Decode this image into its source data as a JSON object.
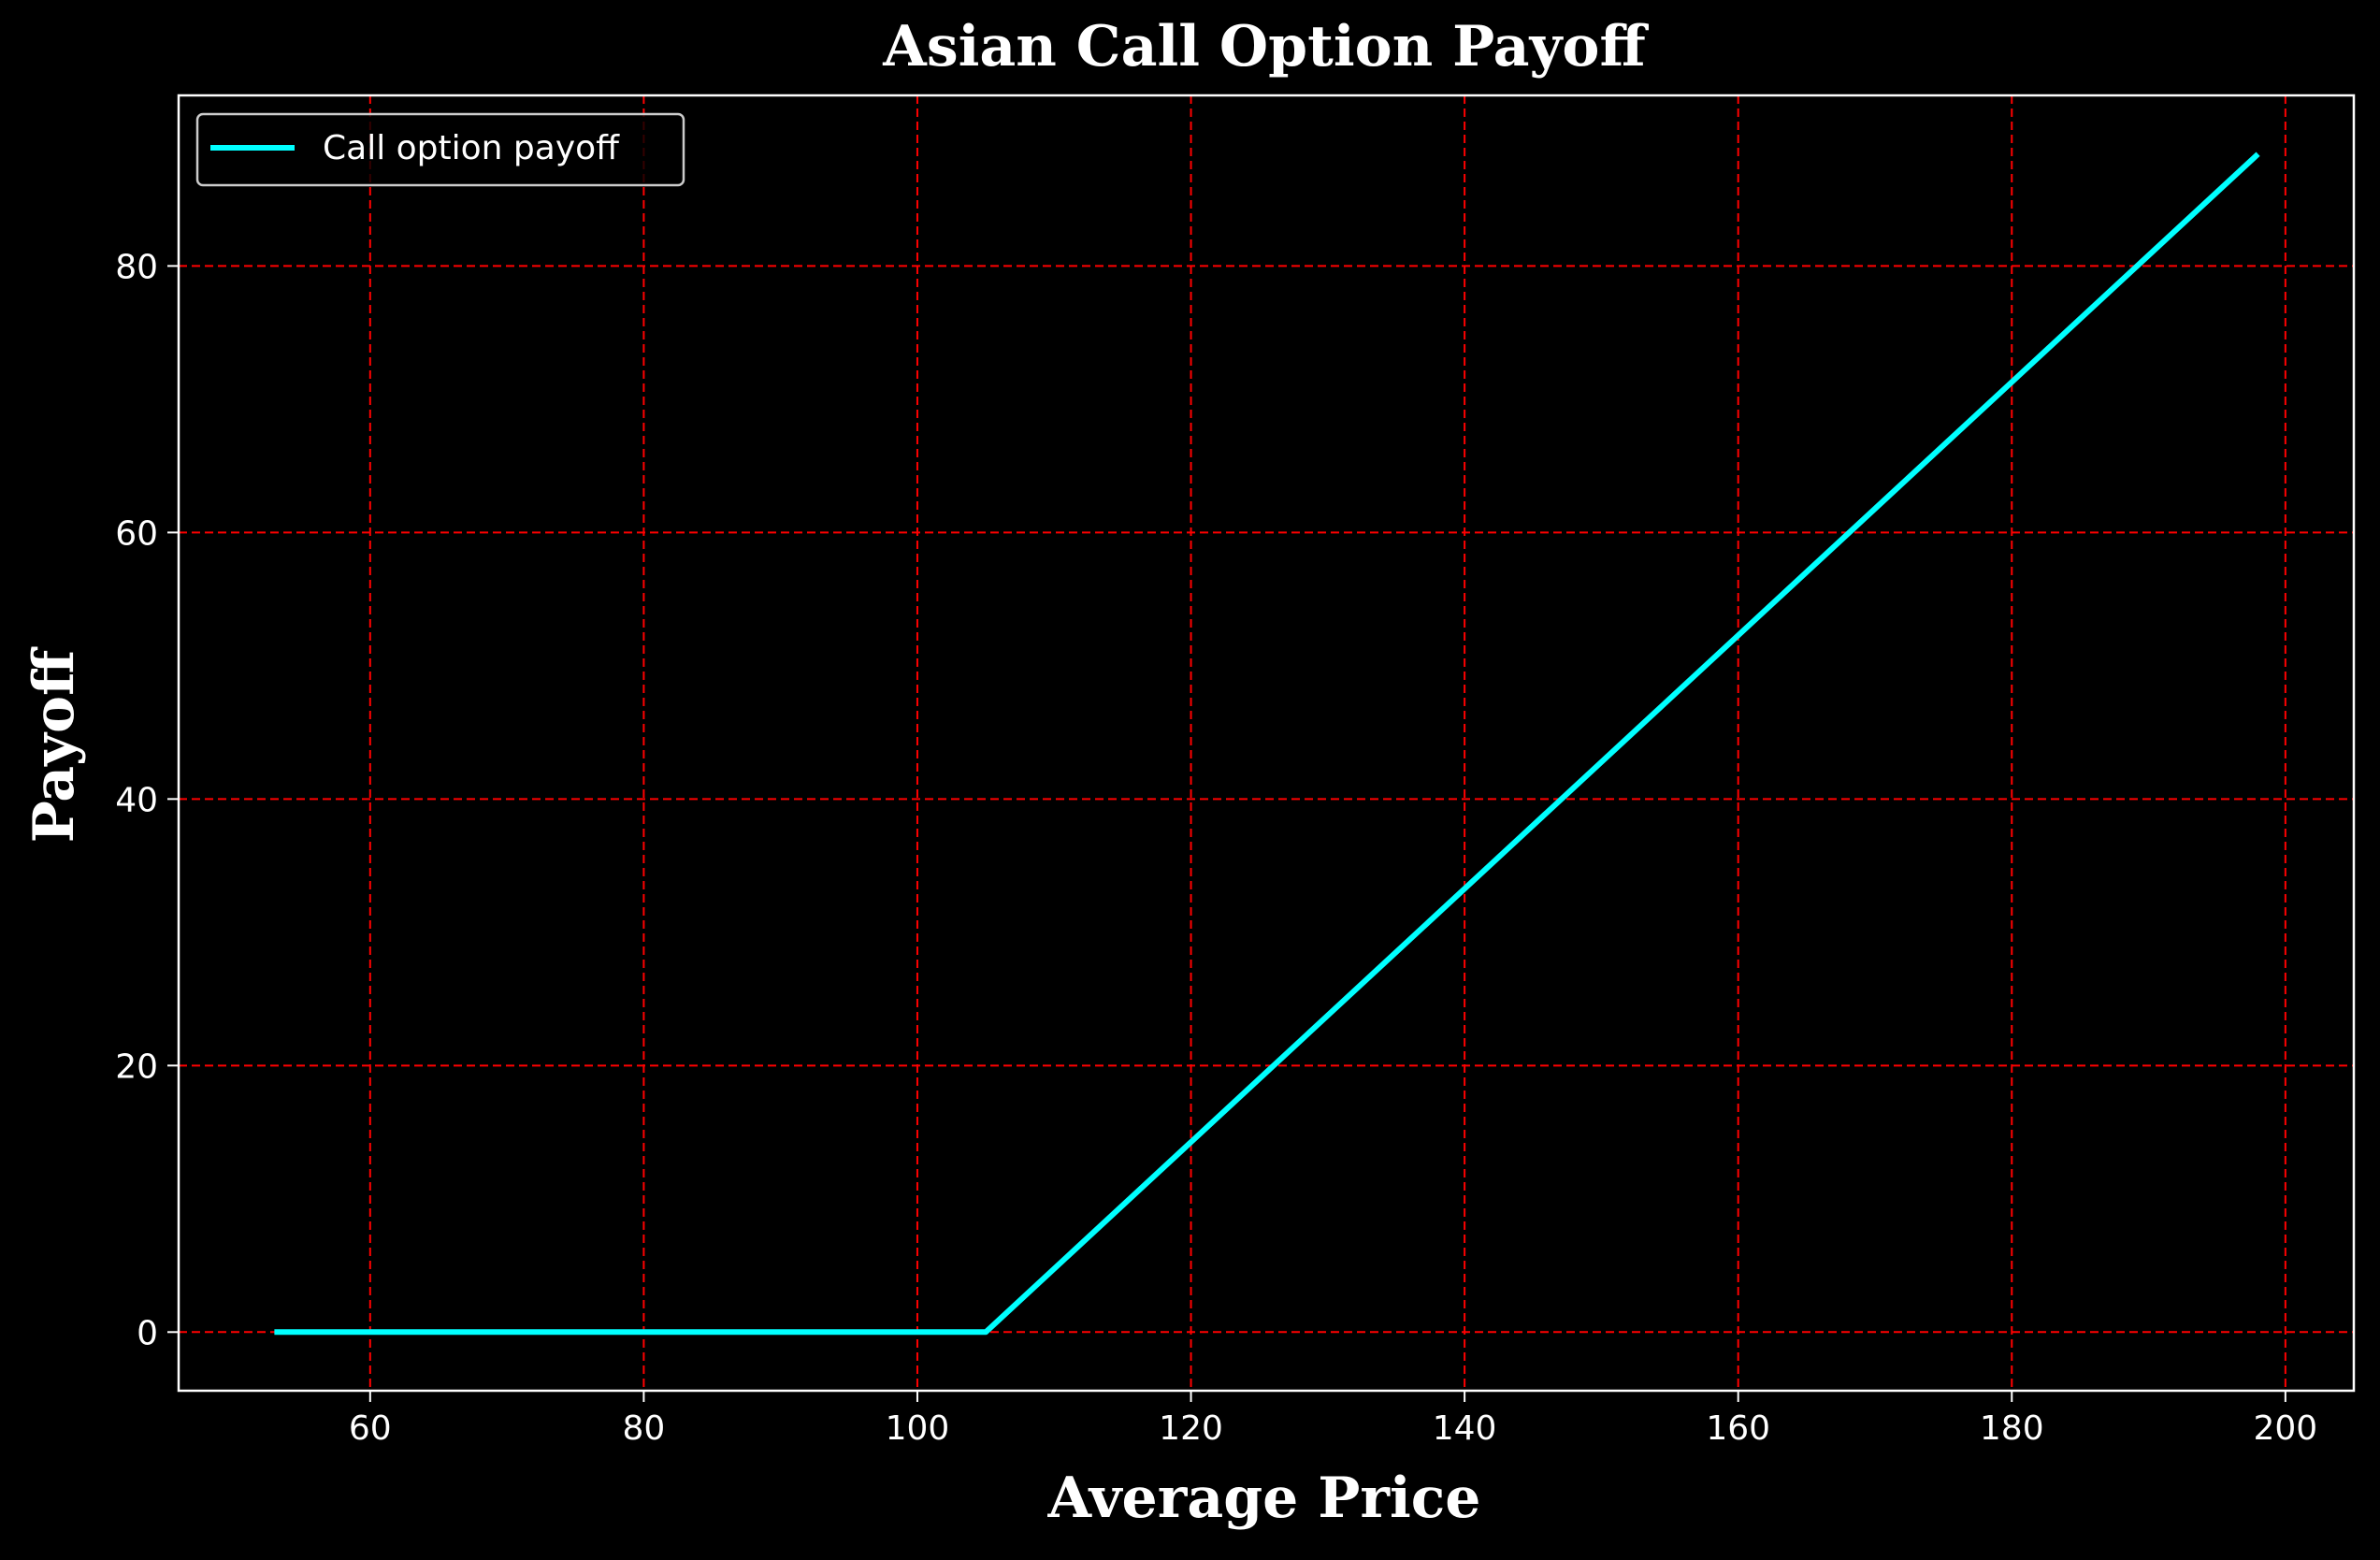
{
  "chart_data": {
    "type": "line",
    "title": "Asian Call Option Payoff",
    "xlabel": "Average Price",
    "ylabel": "Payoff",
    "xlim": [
      46,
      205
    ],
    "ylim": [
      -4.4,
      92.8
    ],
    "x_ticks": [
      60,
      80,
      100,
      120,
      140,
      160,
      180,
      200
    ],
    "y_ticks": [
      0,
      20,
      40,
      60,
      80
    ],
    "grid": true,
    "legend_position": "top-left",
    "series": [
      {
        "name": "Call option payoff",
        "x": [
          53,
          105,
          198
        ],
        "values": [
          0,
          0,
          88.4
        ]
      }
    ]
  },
  "colors": {
    "background": "#000000",
    "line": "#00ffff",
    "grid": "#ff0000",
    "text": "#ffffff"
  }
}
